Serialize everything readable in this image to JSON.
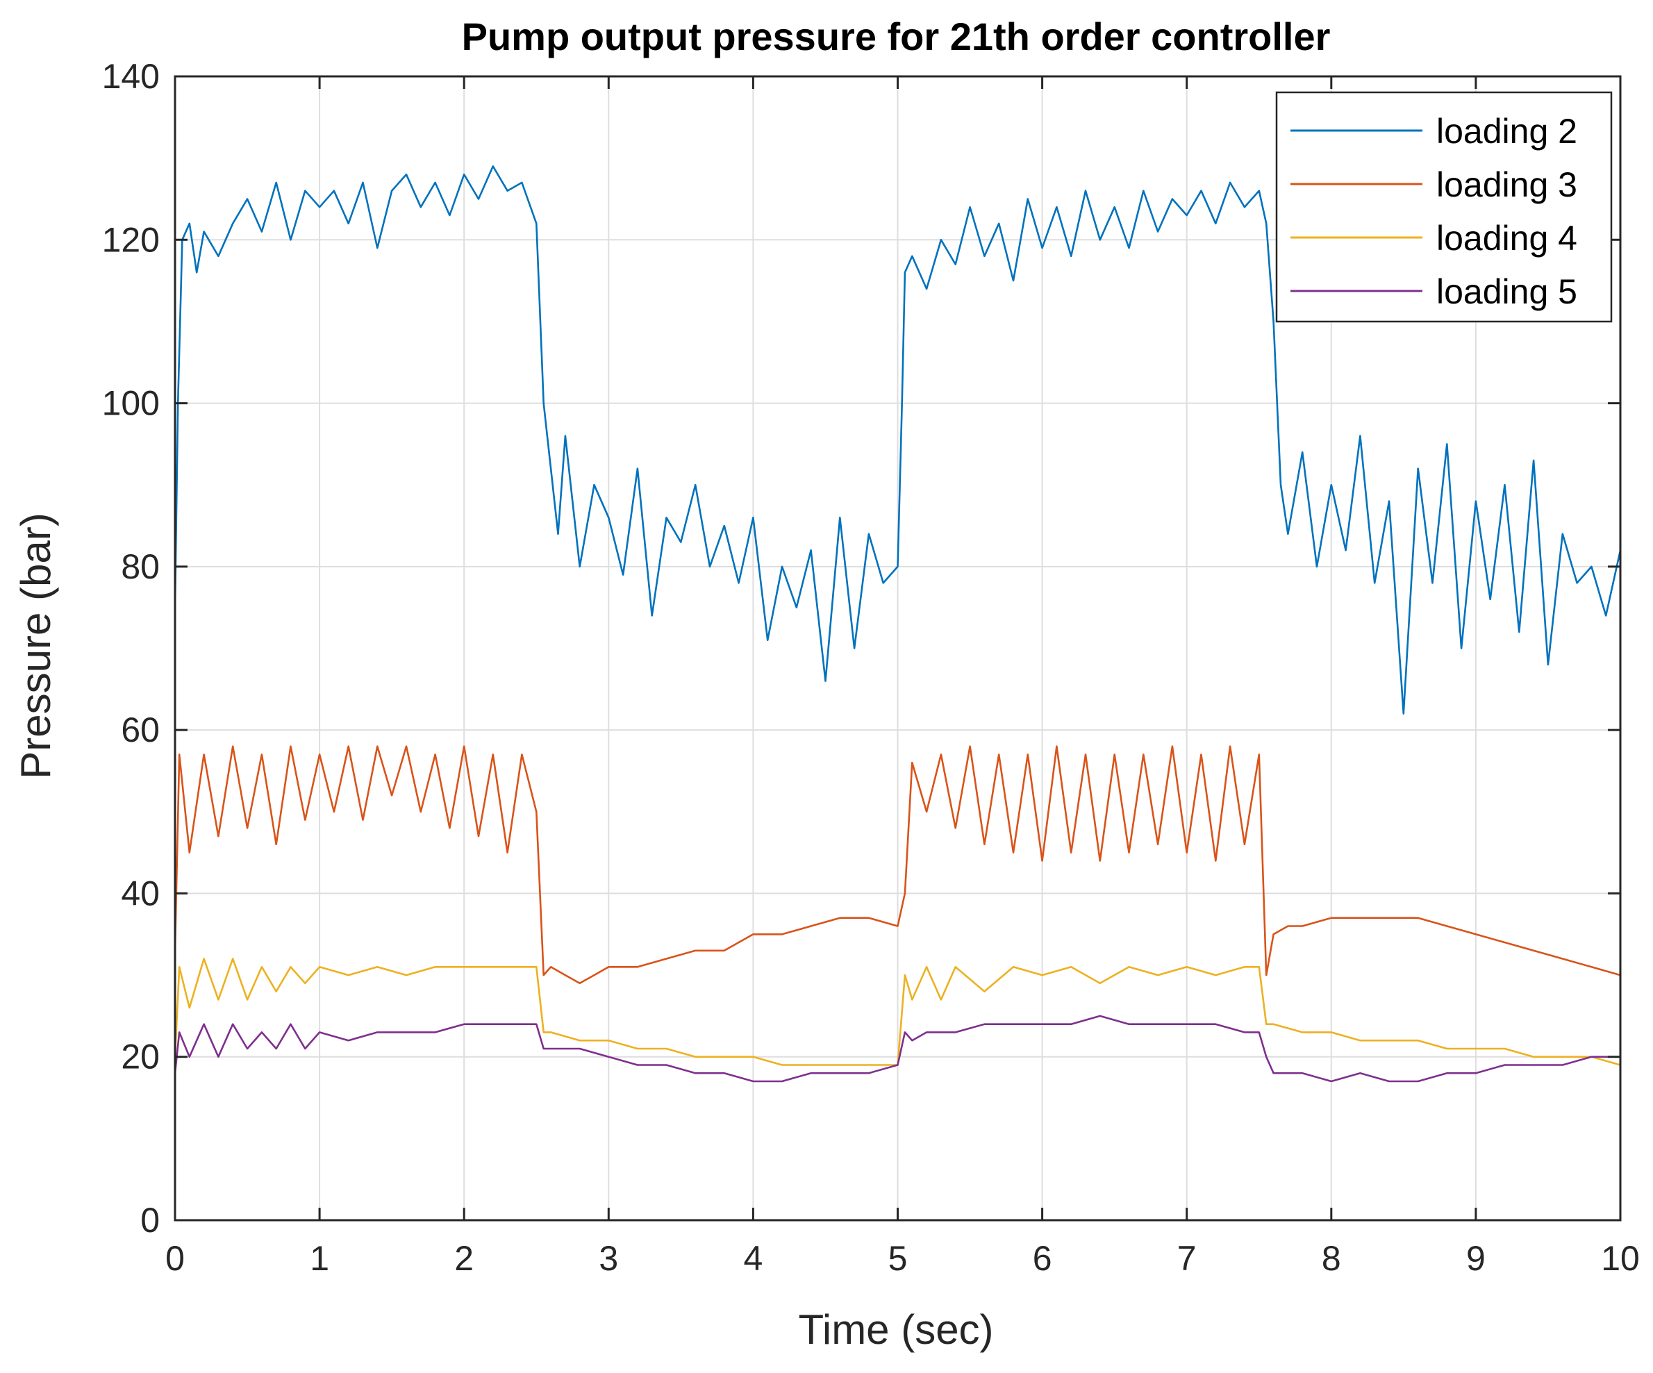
{
  "chart_data": {
    "type": "line",
    "title": "Pump output pressure for 21th order controller",
    "xlabel": "Time (sec)",
    "ylabel": "Pressure (bar)",
    "xlim": [
      0,
      10
    ],
    "ylim": [
      0,
      140
    ],
    "grid": true,
    "legend_position": "top-right",
    "x_ticks": [
      0,
      1,
      2,
      3,
      4,
      5,
      6,
      7,
      8,
      9,
      10
    ],
    "y_ticks": [
      0,
      20,
      40,
      60,
      80,
      100,
      120,
      140
    ],
    "x_tick_labels": [
      "0",
      "1",
      "2",
      "3",
      "4",
      "5",
      "6",
      "7",
      "8",
      "9",
      "10"
    ],
    "y_tick_labels": [
      "0",
      "20",
      "40",
      "60",
      "80",
      "100",
      "120",
      "140"
    ],
    "series": [
      {
        "name": "loading 2",
        "color": "#0072BD",
        "x": [
          0,
          0.02,
          0.05,
          0.1,
          0.15,
          0.2,
          0.3,
          0.4,
          0.5,
          0.6,
          0.7,
          0.8,
          0.9,
          1.0,
          1.1,
          1.2,
          1.3,
          1.4,
          1.5,
          1.6,
          1.7,
          1.8,
          1.9,
          2.0,
          2.1,
          2.2,
          2.3,
          2.4,
          2.5,
          2.55,
          2.6,
          2.65,
          2.7,
          2.8,
          2.9,
          3.0,
          3.1,
          3.2,
          3.3,
          3.4,
          3.5,
          3.6,
          3.7,
          3.8,
          3.9,
          4.0,
          4.1,
          4.2,
          4.3,
          4.4,
          4.5,
          4.6,
          4.7,
          4.8,
          4.9,
          5.0,
          5.03,
          5.05,
          5.1,
          5.2,
          5.3,
          5.4,
          5.5,
          5.6,
          5.7,
          5.8,
          5.9,
          6.0,
          6.1,
          6.2,
          6.3,
          6.4,
          6.5,
          6.6,
          6.7,
          6.8,
          6.9,
          7.0,
          7.1,
          7.2,
          7.3,
          7.4,
          7.5,
          7.55,
          7.6,
          7.65,
          7.7,
          7.8,
          7.9,
          8.0,
          8.1,
          8.2,
          8.3,
          8.4,
          8.5,
          8.6,
          8.7,
          8.8,
          8.9,
          9.0,
          9.1,
          9.2,
          9.3,
          9.4,
          9.5,
          9.6,
          9.7,
          9.8,
          9.9,
          10.0
        ],
        "values": [
          75,
          100,
          120,
          122,
          116,
          121,
          118,
          122,
          125,
          121,
          127,
          120,
          126,
          124,
          126,
          122,
          127,
          119,
          126,
          128,
          124,
          127,
          123,
          128,
          125,
          129,
          126,
          127,
          122,
          100,
          92,
          84,
          96,
          80,
          90,
          86,
          79,
          92,
          74,
          86,
          83,
          90,
          80,
          85,
          78,
          86,
          71,
          80,
          75,
          82,
          66,
          86,
          70,
          84,
          78,
          80,
          100,
          116,
          118,
          114,
          120,
          117,
          124,
          118,
          122,
          115,
          125,
          119,
          124,
          118,
          126,
          120,
          124,
          119,
          126,
          121,
          125,
          123,
          126,
          122,
          127,
          124,
          126,
          122,
          110,
          90,
          84,
          94,
          80,
          90,
          82,
          96,
          78,
          88,
          62,
          92,
          78,
          95,
          70,
          88,
          76,
          90,
          72,
          93,
          68,
          84,
          78,
          80,
          74,
          82
        ]
      },
      {
        "name": "loading 3",
        "color": "#D95319",
        "x": [
          0,
          0.03,
          0.1,
          0.2,
          0.3,
          0.4,
          0.5,
          0.6,
          0.7,
          0.8,
          0.9,
          1.0,
          1.1,
          1.2,
          1.3,
          1.4,
          1.5,
          1.6,
          1.7,
          1.8,
          1.9,
          2.0,
          2.1,
          2.2,
          2.3,
          2.4,
          2.5,
          2.55,
          2.6,
          2.7,
          2.8,
          2.9,
          3.0,
          3.2,
          3.4,
          3.6,
          3.8,
          4.0,
          4.2,
          4.4,
          4.6,
          4.8,
          5.0,
          5.05,
          5.1,
          5.2,
          5.3,
          5.4,
          5.5,
          5.6,
          5.7,
          5.8,
          5.9,
          6.0,
          6.1,
          6.2,
          6.3,
          6.4,
          6.5,
          6.6,
          6.7,
          6.8,
          6.9,
          7.0,
          7.1,
          7.2,
          7.3,
          7.4,
          7.5,
          7.55,
          7.6,
          7.7,
          7.8,
          8.0,
          8.2,
          8.4,
          8.6,
          8.8,
          9.0,
          9.2,
          9.4,
          9.6,
          9.8,
          10.0
        ],
        "values": [
          33,
          57,
          45,
          57,
          47,
          58,
          48,
          57,
          46,
          58,
          49,
          57,
          50,
          58,
          49,
          58,
          52,
          58,
          50,
          57,
          48,
          58,
          47,
          57,
          45,
          57,
          50,
          30,
          31,
          30,
          29,
          30,
          31,
          31,
          32,
          33,
          33,
          35,
          35,
          36,
          37,
          37,
          36,
          40,
          56,
          50,
          57,
          48,
          58,
          46,
          57,
          45,
          57,
          44,
          58,
          45,
          57,
          44,
          57,
          45,
          57,
          46,
          58,
          45,
          57,
          44,
          58,
          46,
          57,
          30,
          35,
          36,
          36,
          37,
          37,
          37,
          37,
          36,
          35,
          34,
          33,
          32,
          31,
          30
        ]
      },
      {
        "name": "loading 4",
        "color": "#EDB120",
        "x": [
          0,
          0.03,
          0.1,
          0.2,
          0.3,
          0.4,
          0.5,
          0.6,
          0.7,
          0.8,
          0.9,
          1.0,
          1.2,
          1.4,
          1.6,
          1.8,
          2.0,
          2.2,
          2.4,
          2.5,
          2.55,
          2.6,
          2.8,
          3.0,
          3.2,
          3.4,
          3.6,
          3.8,
          4.0,
          4.2,
          4.4,
          4.6,
          4.8,
          5.0,
          5.05,
          5.1,
          5.2,
          5.3,
          5.4,
          5.6,
          5.8,
          6.0,
          6.2,
          6.4,
          6.6,
          6.8,
          7.0,
          7.2,
          7.4,
          7.5,
          7.55,
          7.6,
          7.8,
          8.0,
          8.2,
          8.4,
          8.6,
          8.8,
          9.0,
          9.2,
          9.4,
          9.6,
          9.8,
          10.0
        ],
        "values": [
          20,
          31,
          26,
          32,
          27,
          32,
          27,
          31,
          28,
          31,
          29,
          31,
          30,
          31,
          30,
          31,
          31,
          31,
          31,
          31,
          23,
          23,
          22,
          22,
          21,
          21,
          20,
          20,
          20,
          19,
          19,
          19,
          19,
          19,
          30,
          27,
          31,
          27,
          31,
          28,
          31,
          30,
          31,
          29,
          31,
          30,
          31,
          30,
          31,
          31,
          24,
          24,
          23,
          23,
          22,
          22,
          22,
          21,
          21,
          21,
          20,
          20,
          20,
          19
        ]
      },
      {
        "name": "loading 5",
        "color": "#7E2F8E",
        "x": [
          0,
          0.03,
          0.1,
          0.2,
          0.3,
          0.4,
          0.5,
          0.6,
          0.7,
          0.8,
          0.9,
          1.0,
          1.2,
          1.4,
          1.6,
          1.8,
          2.0,
          2.2,
          2.4,
          2.5,
          2.55,
          2.6,
          2.8,
          3.0,
          3.2,
          3.4,
          3.6,
          3.8,
          4.0,
          4.2,
          4.4,
          4.6,
          4.8,
          5.0,
          5.05,
          5.1,
          5.2,
          5.4,
          5.6,
          5.8,
          6.0,
          6.2,
          6.4,
          6.6,
          6.8,
          7.0,
          7.2,
          7.4,
          7.5,
          7.55,
          7.6,
          7.8,
          8.0,
          8.2,
          8.4,
          8.6,
          8.8,
          9.0,
          9.2,
          9.4,
          9.6,
          9.8,
          10.0
        ],
        "values": [
          18,
          23,
          20,
          24,
          20,
          24,
          21,
          23,
          21,
          24,
          21,
          23,
          22,
          23,
          23,
          23,
          24,
          24,
          24,
          24,
          21,
          21,
          21,
          20,
          19,
          19,
          18,
          18,
          17,
          17,
          18,
          18,
          18,
          19,
          23,
          22,
          23,
          23,
          24,
          24,
          24,
          24,
          25,
          24,
          24,
          24,
          24,
          23,
          23,
          20,
          18,
          18,
          17,
          18,
          17,
          17,
          18,
          18,
          19,
          19,
          19,
          20,
          20
        ]
      }
    ]
  }
}
